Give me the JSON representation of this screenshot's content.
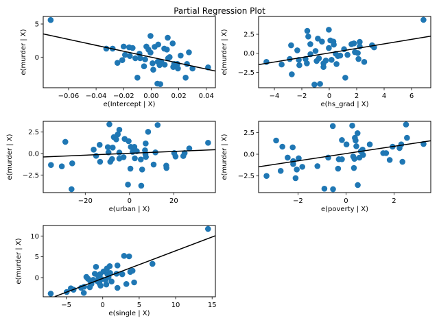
{
  "chart_data": {
    "type": "scatter",
    "title": "Partial Regression Plot",
    "point_color": "#1f77b4",
    "line_color": "#000000",
    "grid": false,
    "subplots": [
      {
        "xlabel": "e(Intercept | X)",
        "ylabel": "e(murder | X)",
        "xlim": [
          -0.0784,
          0.0466
        ],
        "ylim": [
          -4.62,
          6.14
        ],
        "xticks": [
          -0.06,
          -0.04,
          -0.02,
          0.0,
          0.02,
          0.04
        ],
        "xtick_labels": [
          "−0.06",
          "−0.04",
          "−0.02",
          "0.00",
          "0.02",
          "0.04"
        ],
        "yticks": [
          0,
          5
        ],
        "ytick_labels": [
          "0",
          "5"
        ],
        "fit_line": [
          [
            -0.0784,
            3.5
          ],
          [
            0.0466,
            -2.1
          ]
        ],
        "points": [
          [
            -0.073,
            5.6
          ],
          [
            -0.0326,
            1.28
          ],
          [
            -0.028,
            1.28
          ],
          [
            -0.0245,
            -0.86
          ],
          [
            -0.021,
            -0.45
          ],
          [
            -0.02,
            1.6
          ],
          [
            -0.019,
            0.34
          ],
          [
            -0.016,
            1.48
          ],
          [
            -0.0135,
            1.38
          ],
          [
            -0.0155,
            0.17
          ],
          [
            -0.0115,
            -0.17
          ],
          [
            -0.01,
            -3.1
          ],
          [
            -0.0085,
            0.52
          ],
          [
            -0.008,
            -0.17
          ],
          [
            -0.0044,
            -0.34
          ],
          [
            -0.0052,
            -1.38
          ],
          [
            -0.0035,
            1.6
          ],
          [
            -0.002,
            1.14
          ],
          [
            -0.0005,
            0.69
          ],
          [
            -0.0005,
            3.2
          ],
          [
            0.001,
            -0.93
          ],
          [
            0.0015,
            -1.9
          ],
          [
            0.0025,
            1.55
          ],
          [
            0.0045,
            -4.0
          ],
          [
            0.0066,
            -4.07
          ],
          [
            0.0051,
            1.9
          ],
          [
            0.0048,
            -0.69
          ],
          [
            0.0061,
            -1.2
          ],
          [
            0.0073,
            -0.69
          ],
          [
            0.0095,
            1.28
          ],
          [
            0.0098,
            -1.14
          ],
          [
            0.0114,
            1.14
          ],
          [
            0.012,
            2.93
          ],
          [
            0.0123,
            -0.17
          ],
          [
            0.0134,
            0.0
          ],
          [
            0.0156,
            2.07
          ],
          [
            0.016,
            -1.48
          ],
          [
            0.0167,
            -1.03
          ],
          [
            0.019,
            -1.03
          ],
          [
            0.0194,
            -1.72
          ],
          [
            0.0214,
            0.24
          ],
          [
            0.025,
            -3.1
          ],
          [
            0.026,
            -1.03
          ],
          [
            0.0274,
            0.72
          ],
          [
            0.03,
            -1.72
          ],
          [
            0.0413,
            -1.55
          ]
        ]
      },
      {
        "xlabel": "e(hs_grad | X)",
        "ylabel": "e(murder | X)",
        "xlim": [
          -5.15,
          7.4
        ],
        "ylim": [
          -4.54,
          4.85
        ],
        "xticks": [
          -4,
          -2,
          0,
          2,
          4,
          6
        ],
        "xtick_labels": [
          "−4",
          "−2",
          "0",
          "2",
          "4",
          "6"
        ],
        "yticks": [
          -2.5,
          0,
          2.5
        ],
        "ytick_labels": [
          "−2.5",
          "0.0",
          "2.5"
        ],
        "fit_line": [
          [
            -5.15,
            -1.5
          ],
          [
            7.4,
            2.25
          ]
        ],
        "points": [
          [
            -4.58,
            -1.14
          ],
          [
            -3.47,
            -1.48
          ],
          [
            -2.88,
            -0.75
          ],
          [
            -2.78,
            1.05
          ],
          [
            -2.73,
            -2.77
          ],
          [
            -2.33,
            0.39
          ],
          [
            -2.22,
            -0.87
          ],
          [
            -2.18,
            -1.57
          ],
          [
            -1.73,
            -0.75
          ],
          [
            -1.63,
            -1.33
          ],
          [
            -1.6,
            2.95
          ],
          [
            -1.53,
            2.2
          ],
          [
            -1.38,
            1.2
          ],
          [
            -1.37,
            -0.12
          ],
          [
            -1.08,
            -4.13
          ],
          [
            -1.0,
            0.3
          ],
          [
            -0.92,
            -1.02
          ],
          [
            -0.83,
            1.93
          ],
          [
            -0.75,
            -0.66
          ],
          [
            -0.67,
            -4.04
          ],
          [
            -0.53,
            1.54
          ],
          [
            -0.42,
            -1.33
          ],
          [
            -0.42,
            -1.8
          ],
          [
            -0.25,
            -0.96
          ],
          [
            -0.03,
            3.1
          ],
          [
            -0.03,
            0.69
          ],
          [
            0.08,
            1.69
          ],
          [
            0.17,
            -0.87
          ],
          [
            0.3,
            1.54
          ],
          [
            0.33,
            1.14
          ],
          [
            0.47,
            -0.06
          ],
          [
            0.53,
            -1.42
          ],
          [
            0.63,
            -0.36
          ],
          [
            0.8,
            -0.3
          ],
          [
            1.08,
            0.54
          ],
          [
            1.17,
            -3.22
          ],
          [
            1.33,
            -0.21
          ],
          [
            1.62,
            1.2
          ],
          [
            1.8,
            1.3
          ],
          [
            1.87,
            0.15
          ],
          [
            2.08,
            0.03
          ],
          [
            2.13,
            -0.75
          ],
          [
            2.22,
            1.5
          ],
          [
            2.22,
            0.9
          ],
          [
            2.55,
            -1.14
          ],
          [
            3.12,
            1.05
          ],
          [
            3.27,
            0.78
          ],
          [
            6.87,
            4.4
          ]
        ]
      },
      {
        "xlabel": "e(urban | X)",
        "ylabel": "e(murder | X)",
        "xlim": [
          -39.0,
          38.8
        ],
        "ylim": [
          -4.55,
          3.75
        ],
        "xticks": [
          -20,
          0,
          20
        ],
        "xtick_labels": [
          "−20",
          "0",
          "20"
        ],
        "yticks": [
          -2.5,
          0,
          2.5
        ],
        "ytick_labels": [
          "−2.5",
          "0.0",
          "2.5"
        ],
        "fit_line": [
          [
            -39.0,
            -0.4
          ],
          [
            38.8,
            0.45
          ]
        ],
        "points": [
          [
            -35.5,
            -1.33
          ],
          [
            -30.6,
            -1.49
          ],
          [
            -29.0,
            1.36
          ],
          [
            -26.2,
            -4.15
          ],
          [
            -25.9,
            -1.14
          ],
          [
            -16.2,
            0.45
          ],
          [
            -15.1,
            -0.27
          ],
          [
            -13.5,
            1.01
          ],
          [
            -13.3,
            -0.96
          ],
          [
            -9.8,
            0.74
          ],
          [
            -9.5,
            0.13
          ],
          [
            -9.1,
            3.4
          ],
          [
            -8.7,
            -0.96
          ],
          [
            -7.9,
            -0.64
          ],
          [
            -7.6,
            0.69
          ],
          [
            -7.1,
            1.91
          ],
          [
            -6.0,
            1.65
          ],
          [
            -5.3,
            2.23
          ],
          [
            -4.6,
            0.11
          ],
          [
            -4.6,
            -0.59
          ],
          [
            -4.6,
            2.77
          ],
          [
            -2.7,
            -0.43
          ],
          [
            -2.2,
            1.7
          ],
          [
            -0.7,
            -3.62
          ],
          [
            -0.4,
            1.44
          ],
          [
            0.4,
            -1.76
          ],
          [
            0.6,
            0.77
          ],
          [
            1.4,
            0.19
          ],
          [
            2.2,
            0.77
          ],
          [
            2.4,
            -0.56
          ],
          [
            3.3,
            0.27
          ],
          [
            5.1,
            -0.69
          ],
          [
            5.3,
            -3.75
          ],
          [
            5.7,
            -1.86
          ],
          [
            7.0,
            0.37
          ],
          [
            7.2,
            -0.08
          ],
          [
            7.3,
            1.17
          ],
          [
            7.4,
            -0.4
          ],
          [
            8.4,
            2.53
          ],
          [
            10.9,
            -1.28
          ],
          [
            11.7,
            0.13
          ],
          [
            12.7,
            3.32
          ],
          [
            16.6,
            -1.41
          ],
          [
            16.7,
            -1.68
          ],
          [
            20.2,
            0.05
          ],
          [
            20.8,
            -0.35
          ],
          [
            24.3,
            -0.29
          ],
          [
            24.9,
            0.05
          ],
          [
            27.0,
            0.59
          ],
          [
            35.5,
            1.25
          ]
        ]
      },
      {
        "xlabel": "e(poverty | X)",
        "ylabel": "e(murder | X)",
        "xlim": [
          -3.64,
          3.53
        ],
        "ylim": [
          -4.42,
          3.79
        ],
        "xticks": [
          -2,
          0,
          2
        ],
        "xtick_labels": [
          "−2",
          "0",
          "2"
        ],
        "yticks": [
          -2.5,
          0,
          2.5
        ],
        "ytick_labels": [
          "−2.5",
          "0.0",
          "2.5"
        ],
        "fit_line": [
          [
            -3.64,
            -1.45
          ],
          [
            3.53,
            1.55
          ]
        ],
        "points": [
          [
            -3.31,
            -2.5
          ],
          [
            -2.91,
            1.58
          ],
          [
            -2.72,
            -1.92
          ],
          [
            -2.65,
            0.87
          ],
          [
            -2.43,
            -0.39
          ],
          [
            -2.22,
            0.79
          ],
          [
            -2.2,
            -0.79
          ],
          [
            -2.2,
            -1.13
          ],
          [
            -2.1,
            -2.76
          ],
          [
            -2.05,
            -1.76
          ],
          [
            -1.97,
            -0.47
          ],
          [
            -1.82,
            -1.45
          ],
          [
            -1.19,
            -1.37
          ],
          [
            -0.9,
            -3.97
          ],
          [
            -0.74,
            -0.39
          ],
          [
            -0.55,
            3.24
          ],
          [
            -0.54,
            -4.03
          ],
          [
            -0.33,
            -1.66
          ],
          [
            -0.3,
            -0.58
          ],
          [
            -0.17,
            -0.58
          ],
          [
            -0.17,
            1.63
          ],
          [
            0.02,
            1.13
          ],
          [
            0.26,
            3.29
          ],
          [
            0.3,
            -0.26
          ],
          [
            0.33,
            -1.58
          ],
          [
            0.35,
            -0.53
          ],
          [
            0.37,
            1.89
          ],
          [
            0.4,
            1.58
          ],
          [
            0.43,
            0.92
          ],
          [
            0.48,
            2.42
          ],
          [
            0.49,
            -3.55
          ],
          [
            0.56,
            -0.39
          ],
          [
            0.62,
            0.34
          ],
          [
            0.69,
            0.53
          ],
          [
            0.71,
            -0.08
          ],
          [
            0.99,
            1.13
          ],
          [
            1.55,
            0.13
          ],
          [
            1.67,
            0.13
          ],
          [
            1.82,
            -0.66
          ],
          [
            1.94,
            0.87
          ],
          [
            2.23,
            0.71
          ],
          [
            2.3,
            1.13
          ],
          [
            2.35,
            -0.87
          ],
          [
            2.5,
            3.42
          ],
          [
            2.54,
            1.89
          ],
          [
            3.23,
            1.18
          ]
        ]
      },
      {
        "xlabel": "e(single | X)",
        "ylabel": "e(murder | X)",
        "xlim": [
          -8.16,
          15.45
        ],
        "ylim": [
          -4.61,
          12.52
        ],
        "xticks": [
          -5,
          0,
          5,
          10,
          15
        ],
        "xtick_labels": [
          "−5",
          "0",
          "5",
          "10",
          "15"
        ],
        "yticks": [
          0,
          5,
          10
        ],
        "ytick_labels": [
          "0",
          "5",
          "10"
        ],
        "fit_line": [
          [
            -6.57,
            -4.56
          ],
          [
            15.45,
            10.05
          ]
        ],
        "points": [
          [
            -7.13,
            -3.85
          ],
          [
            -4.94,
            -3.46
          ],
          [
            -4.37,
            -2.58
          ],
          [
            -4.0,
            -2.91
          ],
          [
            -2.96,
            -2.47
          ],
          [
            -2.59,
            -3.68
          ],
          [
            -2.55,
            -2.2
          ],
          [
            -2.24,
            0.16
          ],
          [
            -2.02,
            -0.27
          ],
          [
            -1.77,
            -2.31
          ],
          [
            -1.71,
            -0.82
          ],
          [
            -1.55,
            -1.54
          ],
          [
            -1.3,
            -0.55
          ],
          [
            -1.08,
            0.93
          ],
          [
            -0.92,
            2.58
          ],
          [
            -0.77,
            -0.82
          ],
          [
            -0.61,
            0.38
          ],
          [
            -0.45,
            -1.37
          ],
          [
            -0.36,
            0.82
          ],
          [
            -0.3,
            -1.92
          ],
          [
            -0.14,
            -0.38
          ],
          [
            0.11,
            1.48
          ],
          [
            0.39,
            -0.55
          ],
          [
            0.49,
            -1.65
          ],
          [
            0.58,
            2.2
          ],
          [
            0.64,
            0.82
          ],
          [
            0.8,
            0.16
          ],
          [
            0.96,
            2.75
          ],
          [
            1.02,
            1.1
          ],
          [
            1.21,
            -0.93
          ],
          [
            1.9,
            0.93
          ],
          [
            2.02,
            2.91
          ],
          [
            2.02,
            -2.47
          ],
          [
            2.68,
            0.82
          ],
          [
            2.93,
            5.22
          ],
          [
            3.24,
            -1.54
          ],
          [
            3.62,
            5.11
          ],
          [
            3.78,
            1.37
          ],
          [
            4.09,
            1.65
          ],
          [
            4.31,
            -1.15
          ],
          [
            6.82,
            3.3
          ],
          [
            14.44,
            11.7
          ]
        ]
      }
    ]
  }
}
